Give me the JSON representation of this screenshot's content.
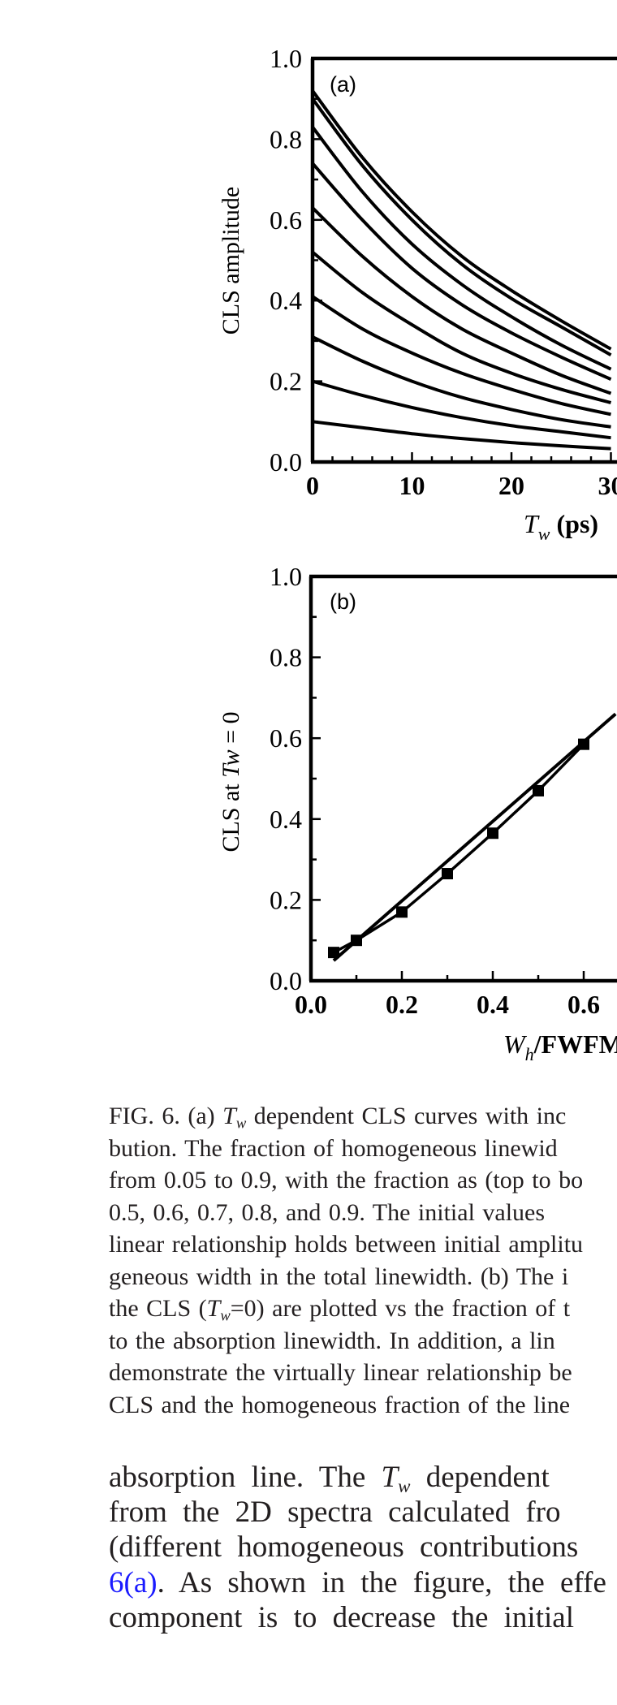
{
  "chart_data": [
    {
      "type": "line",
      "panel_label": "(a)",
      "xlabel": {
        "main": "T",
        "sub": "w",
        "unit": " (ps)"
      },
      "ylabel": "CLS amplitude",
      "xlim": [
        0,
        30.7
      ],
      "ylim": [
        0,
        1.0
      ],
      "x_ticks": [
        0,
        10,
        20,
        30
      ],
      "x_tick_labels": [
        "0",
        "10",
        "20",
        "30"
      ],
      "y_ticks": [
        0,
        0.2,
        0.4,
        0.6,
        0.8,
        1.0
      ],
      "y_tick_labels": [
        "0.0",
        "0.2",
        "0.4",
        "0.6",
        "0.8",
        "1.0"
      ],
      "grid": false,
      "x": [
        0,
        5,
        10,
        15,
        20,
        25,
        30
      ],
      "series": [
        {
          "values": [
            0.92,
            0.755,
            0.62,
            0.51,
            0.425,
            0.35,
            0.28
          ]
        },
        {
          "values": [
            0.9,
            0.735,
            0.6,
            0.49,
            0.405,
            0.335,
            0.265
          ]
        },
        {
          "values": [
            0.83,
            0.67,
            0.54,
            0.44,
            0.36,
            0.29,
            0.23
          ]
        },
        {
          "values": [
            0.74,
            0.6,
            0.48,
            0.39,
            0.32,
            0.26,
            0.205
          ]
        },
        {
          "values": [
            0.63,
            0.51,
            0.41,
            0.33,
            0.27,
            0.215,
            0.17
          ]
        },
        {
          "values": [
            0.52,
            0.42,
            0.34,
            0.27,
            0.22,
            0.18,
            0.147
          ]
        },
        {
          "values": [
            0.41,
            0.33,
            0.27,
            0.22,
            0.18,
            0.145,
            0.118
          ]
        },
        {
          "values": [
            0.31,
            0.25,
            0.2,
            0.16,
            0.13,
            0.105,
            0.087
          ]
        },
        {
          "values": [
            0.2,
            0.165,
            0.135,
            0.11,
            0.09,
            0.075,
            0.06
          ]
        },
        {
          "values": [
            0.1,
            0.085,
            0.07,
            0.058,
            0.048,
            0.04,
            0.033
          ]
        }
      ]
    },
    {
      "type": "line",
      "panel_label": "(b)",
      "xlabel": {
        "main": "W",
        "sub": "h",
        "unit": "/FWFM"
      },
      "ylabel": {
        "pre": "CLS at ",
        "var": "Tw",
        "post": " = 0"
      },
      "xlim": [
        0,
        0.67
      ],
      "ylim": [
        0,
        1.0
      ],
      "x_ticks": [
        0,
        0.2,
        0.4,
        0.6
      ],
      "x_tick_labels": [
        "0.0",
        "0.2",
        "0.4",
        "0.6"
      ],
      "y_ticks": [
        0,
        0.2,
        0.4,
        0.6,
        0.8,
        1.0
      ],
      "y_tick_labels": [
        "0.0",
        "0.2",
        "0.4",
        "0.6",
        "0.8",
        "1.0"
      ],
      "grid": false,
      "series": [
        {
          "marker": "square",
          "x": [
            0.05,
            0.1,
            0.2,
            0.3,
            0.4,
            0.5,
            0.6
          ],
          "values": [
            0.07,
            0.1,
            0.17,
            0.265,
            0.365,
            0.47,
            0.585
          ]
        },
        {
          "marker": "none",
          "x": [
            0.05,
            0.67
          ],
          "values": [
            0.05,
            0.66
          ]
        }
      ]
    }
  ],
  "caption": {
    "lines": [
      {
        "parts": [
          {
            "t": "FIG. 6. (a) "
          },
          {
            "t": "T",
            "style": "ital"
          },
          {
            "t": "w",
            "style": "sub"
          },
          {
            "t": " dependent CLS curves with inc"
          }
        ]
      },
      {
        "parts": [
          {
            "t": "bution. The fraction of homogeneous linewid"
          }
        ]
      },
      {
        "parts": [
          {
            "t": "from 0.05 to 0.9, with the fraction as (top to bo"
          }
        ]
      },
      {
        "parts": [
          {
            "t": "0.5, 0.6, 0.7, 0.8, and 0.9. The initial values"
          }
        ]
      },
      {
        "parts": [
          {
            "t": "linear relationship holds between initial amplitu"
          }
        ]
      },
      {
        "parts": [
          {
            "t": "geneous width in the total linewidth. (b) The i"
          }
        ]
      },
      {
        "parts": [
          {
            "t": "the CLS ("
          },
          {
            "t": "T",
            "style": "ital"
          },
          {
            "t": "w",
            "style": "sub"
          },
          {
            "t": "=0) are plotted vs the fraction of t"
          }
        ]
      },
      {
        "parts": [
          {
            "t": "to the absorption linewidth. In addition, a lin"
          }
        ]
      },
      {
        "parts": [
          {
            "t": "demonstrate the virtually linear relationship be"
          }
        ]
      },
      {
        "parts": [
          {
            "t": "CLS and the homogeneous fraction of the line"
          }
        ]
      }
    ]
  },
  "body": {
    "link_color": "#1a1aff",
    "lines": [
      {
        "parts": [
          {
            "t": "absorption line. The "
          },
          {
            "t": "T",
            "style": "ital"
          },
          {
            "t": "w",
            "style": "sub"
          },
          {
            "t": " dependent"
          }
        ]
      },
      {
        "parts": [
          {
            "t": "from the 2D spectra calculated fro"
          }
        ]
      },
      {
        "parts": [
          {
            "t": "(different homogeneous contributions"
          }
        ]
      },
      {
        "parts": [
          {
            "t": "6(a)",
            "style": "link"
          },
          {
            "t": ". As shown in the figure, the effe"
          }
        ]
      },
      {
        "parts": [
          {
            "t": "component is to decrease the initial"
          }
        ]
      }
    ]
  }
}
